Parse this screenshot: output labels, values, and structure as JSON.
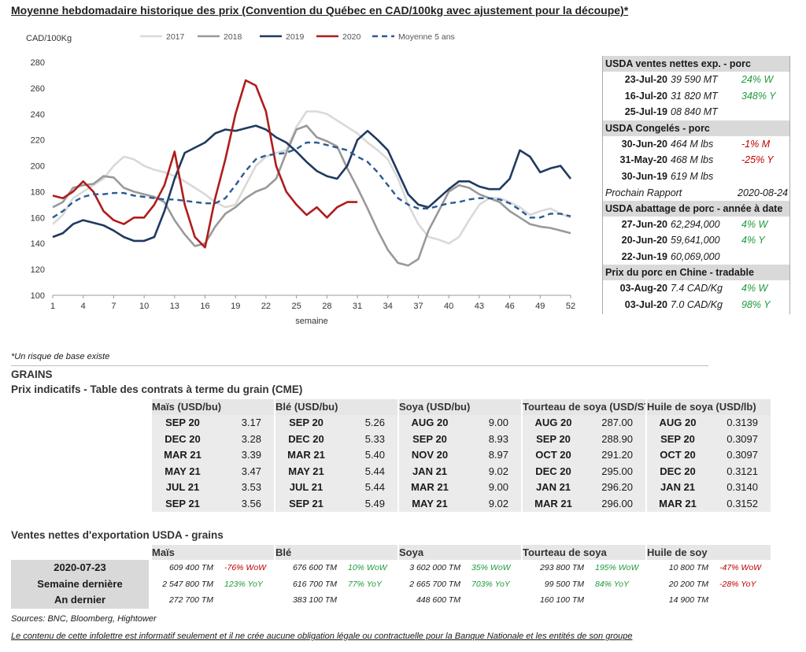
{
  "title": "Moyenne hebdomadaire historique des prix (Convention du Québec en CAD/100kg avec ajustement pour la découpe)*",
  "chart_data": {
    "type": "line",
    "ylabel": "CAD/100Kg",
    "xlabel": "semaine",
    "ylim": [
      100,
      280
    ],
    "yticks": [
      100,
      120,
      140,
      160,
      180,
      200,
      220,
      240,
      260,
      280
    ],
    "xlim": [
      1,
      52
    ],
    "xticks": [
      1,
      4,
      7,
      10,
      13,
      16,
      19,
      22,
      25,
      28,
      31,
      34,
      37,
      40,
      43,
      46,
      49,
      52
    ],
    "legend_position": "top",
    "series": [
      {
        "name": "2017",
        "color": "#d9d9d9",
        "dash": false,
        "x": [
          1,
          2,
          3,
          4,
          5,
          6,
          7,
          8,
          9,
          10,
          11,
          12,
          13,
          14,
          15,
          16,
          17,
          18,
          19,
          20,
          21,
          22,
          23,
          24,
          25,
          26,
          27,
          28,
          29,
          30,
          31,
          32,
          33,
          34,
          35,
          36,
          37,
          38,
          39,
          40,
          41,
          42,
          43,
          44,
          45,
          46,
          47,
          48,
          49,
          50,
          51,
          52
        ],
        "y": [
          155,
          162,
          175,
          180,
          185,
          190,
          200,
          207,
          205,
          200,
          197,
          195,
          192,
          188,
          183,
          178,
          172,
          168,
          170,
          185,
          200,
          207,
          210,
          212,
          230,
          242,
          242,
          240,
          235,
          230,
          225,
          218,
          212,
          205,
          190,
          170,
          155,
          145,
          143,
          140,
          145,
          158,
          170,
          175,
          175,
          172,
          168,
          162,
          165,
          167,
          163,
          160
        ]
      },
      {
        "name": "2018",
        "color": "#999999",
        "dash": false,
        "x": [
          1,
          2,
          3,
          4,
          5,
          6,
          7,
          8,
          9,
          10,
          11,
          12,
          13,
          14,
          15,
          16,
          17,
          18,
          19,
          20,
          21,
          22,
          23,
          24,
          25,
          26,
          27,
          28,
          29,
          30,
          31,
          32,
          33,
          34,
          35,
          36,
          37,
          38,
          39,
          40,
          41,
          42,
          43,
          44,
          45,
          46,
          47,
          48,
          49,
          50,
          51,
          52
        ],
        "y": [
          168,
          172,
          183,
          185,
          186,
          192,
          191,
          183,
          180,
          178,
          176,
          172,
          158,
          147,
          138,
          140,
          153,
          163,
          168,
          175,
          180,
          183,
          190,
          210,
          228,
          231,
          222,
          219,
          215,
          198,
          183,
          167,
          150,
          135,
          125,
          123,
          128,
          150,
          165,
          180,
          185,
          183,
          178,
          175,
          172,
          165,
          160,
          155,
          153,
          152,
          150,
          148
        ]
      },
      {
        "name": "2019",
        "color": "#1f3a5f",
        "dash": false,
        "x": [
          1,
          2,
          3,
          4,
          5,
          6,
          7,
          8,
          9,
          10,
          11,
          12,
          13,
          14,
          15,
          16,
          17,
          18,
          19,
          20,
          21,
          22,
          23,
          24,
          25,
          26,
          27,
          28,
          29,
          30,
          31,
          32,
          33,
          34,
          35,
          36,
          37,
          38,
          39,
          40,
          41,
          42,
          43,
          44,
          45,
          46,
          47,
          48,
          49,
          50,
          51,
          52
        ],
        "y": [
          145,
          148,
          155,
          158,
          156,
          154,
          150,
          145,
          142,
          142,
          145,
          165,
          190,
          210,
          214,
          218,
          225,
          228,
          227,
          229,
          231,
          228,
          222,
          218,
          211,
          203,
          196,
          192,
          190,
          200,
          220,
          227,
          220,
          212,
          195,
          178,
          170,
          168,
          175,
          182,
          188,
          188,
          184,
          182,
          182,
          190,
          212,
          207,
          195,
          198,
          200,
          190
        ]
      },
      {
        "name": "2020",
        "color": "#b01c1c",
        "dash": false,
        "x": [
          1,
          2,
          3,
          4,
          5,
          6,
          7,
          8,
          9,
          10,
          11,
          12,
          13,
          14,
          15,
          16,
          17,
          18,
          19,
          20,
          21,
          22,
          23,
          24,
          25,
          26,
          27,
          28,
          29,
          30,
          31
        ],
        "y": [
          177,
          175,
          180,
          188,
          180,
          165,
          158,
          155,
          160,
          160,
          170,
          185,
          211,
          170,
          145,
          137,
          175,
          205,
          240,
          266,
          262,
          242,
          200,
          180,
          170,
          162,
          168,
          160,
          168,
          172,
          172
        ]
      },
      {
        "name": "Moyenne 5 ans",
        "color": "#2a5a93",
        "dash": true,
        "x": [
          1,
          2,
          3,
          4,
          5,
          6,
          7,
          8,
          9,
          10,
          11,
          12,
          13,
          14,
          15,
          16,
          17,
          18,
          19,
          20,
          21,
          22,
          23,
          24,
          25,
          26,
          27,
          28,
          29,
          30,
          31,
          32,
          33,
          34,
          35,
          36,
          37,
          38,
          39,
          40,
          41,
          42,
          43,
          44,
          45,
          46,
          47,
          48,
          49,
          50,
          51,
          52
        ],
        "y": [
          160,
          165,
          172,
          176,
          178,
          178,
          179,
          179,
          177,
          176,
          175,
          174,
          174,
          173,
          172,
          171,
          171,
          175,
          185,
          196,
          205,
          208,
          209,
          210,
          213,
          218,
          218,
          216,
          214,
          212,
          207,
          203,
          195,
          185,
          175,
          170,
          167,
          167,
          169,
          171,
          172,
          174,
          175,
          175,
          174,
          171,
          166,
          160,
          160,
          163,
          163,
          161
        ]
      }
    ]
  },
  "usda": {
    "sections": [
      {
        "title": "USDA ventes nettes exp. - porc",
        "rows": [
          {
            "date": "23-Jul-20",
            "value": "39 590  MT",
            "pct": "24% W",
            "pct_color": "green"
          },
          {
            "date": "16-Jul-20",
            "value": "31 820  MT",
            "pct": "348% Y",
            "pct_color": "green"
          },
          {
            "date": "25-Jul-19",
            "value": "08 840  MT",
            "pct": "",
            "pct_color": ""
          }
        ]
      },
      {
        "title": "USDA Congelés - porc",
        "rows": [
          {
            "date": "30-Jun-20",
            "value": "464 M lbs",
            "pct": "-1% M",
            "pct_color": "red"
          },
          {
            "date": "31-May-20",
            "value": "468 M lbs",
            "pct": "-25% Y",
            "pct_color": "red"
          },
          {
            "date": "30-Jun-19",
            "value": "619 M lbs",
            "pct": "",
            "pct_color": ""
          }
        ]
      },
      {
        "title": "USDA abattage de porc - année à date",
        "rows": [
          {
            "date": "27-Jun-20",
            "value": "62,294,000",
            "pct": "4% W",
            "pct_color": "green"
          },
          {
            "date": "20-Jun-20",
            "value": "59,641,000",
            "pct": "4% Y",
            "pct_color": "green"
          },
          {
            "date": "22-Jun-19",
            "value": "60,069,000",
            "pct": "",
            "pct_color": ""
          }
        ]
      },
      {
        "title": "Prix du porc en Chine - tradable",
        "rows": [
          {
            "date": "03-Aug-20",
            "value": "7.4 CAD/Kg",
            "pct": "4% W",
            "pct_color": "green"
          },
          {
            "date": "03-Jul-20",
            "value": "7.0 CAD/Kg",
            "pct": "98% Y",
            "pct_color": "green"
          }
        ]
      }
    ],
    "next_report_label": "Prochain Rapport",
    "next_report_date": "2020-08-24"
  },
  "footnote": "*Un risque de base existe",
  "grains_heading": "GRAINS",
  "futures_heading": "Prix indicatifs - Table des contrats à terme du grain (CME)",
  "futures": [
    {
      "name": "Maïs (USD/bu)",
      "rows": [
        [
          "SEP 20",
          "3.17"
        ],
        [
          "DEC 20",
          "3.28"
        ],
        [
          "MAR 21",
          "3.39"
        ],
        [
          "MAY 21",
          "3.47"
        ],
        [
          "JUL 21",
          "3.53"
        ],
        [
          "SEP 21",
          "3.56"
        ]
      ]
    },
    {
      "name": "Blé (USD/bu)",
      "rows": [
        [
          "SEP 20",
          "5.26"
        ],
        [
          "DEC 20",
          "5.33"
        ],
        [
          "MAR 21",
          "5.40"
        ],
        [
          "MAY 21",
          "5.44"
        ],
        [
          "JUL 21",
          "5.44"
        ],
        [
          "SEP 21",
          "5.49"
        ]
      ]
    },
    {
      "name": "Soya (USD/bu)",
      "rows": [
        [
          "AUG 20",
          "9.00"
        ],
        [
          "SEP 20",
          "8.93"
        ],
        [
          "NOV 20",
          "8.97"
        ],
        [
          "JAN 21",
          "9.02"
        ],
        [
          "MAR 21",
          "9.00"
        ],
        [
          "MAY 21",
          "9.02"
        ]
      ]
    },
    {
      "name": "Tourteau de soya (USD/ST)",
      "rows": [
        [
          "AUG 20",
          "287.00"
        ],
        [
          "SEP 20",
          "288.90"
        ],
        [
          "OCT 20",
          "291.20"
        ],
        [
          "DEC 20",
          "295.00"
        ],
        [
          "JAN 21",
          "296.20"
        ],
        [
          "MAR 21",
          "296.00"
        ]
      ]
    },
    {
      "name": "Huile de soya (USD/lb)",
      "rows": [
        [
          "AUG 20",
          "0.3139"
        ],
        [
          "SEP 20",
          "0.3097"
        ],
        [
          "OCT 20",
          "0.3097"
        ],
        [
          "DEC 20",
          "0.3121"
        ],
        [
          "JAN 21",
          "0.3140"
        ],
        [
          "MAR 21",
          "0.3152"
        ]
      ]
    }
  ],
  "exports_heading": "Ventes nettes d'exportation USDA - grains",
  "exports": {
    "row_labels": [
      "2020-07-23",
      "Semaine dernière",
      "An dernier"
    ],
    "columns": [
      {
        "name": "Maïs",
        "values": [
          "609 400 TM",
          "2 547 800 TM",
          "272 700 TM"
        ],
        "pcts": [
          {
            "t": "-76% WoW",
            "c": "red"
          },
          {
            "t": "123% YoY",
            "c": "green"
          },
          {
            "t": "",
            "c": ""
          }
        ]
      },
      {
        "name": "Blé",
        "values": [
          "676 600 TM",
          "616 700 TM",
          "383 100 TM"
        ],
        "pcts": [
          {
            "t": "10% WoW",
            "c": "green"
          },
          {
            "t": "77% YoY",
            "c": "green"
          },
          {
            "t": "",
            "c": ""
          }
        ]
      },
      {
        "name": "Soya",
        "values": [
          "3 602 000 TM",
          "2 665 700 TM",
          "448 600 TM"
        ],
        "pcts": [
          {
            "t": "35% WoW",
            "c": "green"
          },
          {
            "t": "703% YoY",
            "c": "green"
          },
          {
            "t": "",
            "c": ""
          }
        ]
      },
      {
        "name": "Tourteau de soya",
        "values": [
          "293 800 TM",
          "99 500 TM",
          "160 100 TM"
        ],
        "pcts": [
          {
            "t": "195% WoW",
            "c": "green"
          },
          {
            "t": "84% YoY",
            "c": "green"
          },
          {
            "t": "",
            "c": ""
          }
        ]
      },
      {
        "name": "Huile de soy",
        "values": [
          "10 800 TM",
          "20 200 TM",
          "14 900 TM"
        ],
        "pcts": [
          {
            "t": "-47% WoW",
            "c": "red"
          },
          {
            "t": "-28% YoY",
            "c": "red"
          },
          {
            "t": "",
            "c": ""
          }
        ]
      }
    ]
  },
  "sources": "Sources: BNC, Bloomberg, Hightower",
  "disclaimer": "Le contenu de cette infolettre est informatif seulement et il ne crée aucune obligation légale ou contractuelle pour la Banque Nationale et les entités de son groupe"
}
